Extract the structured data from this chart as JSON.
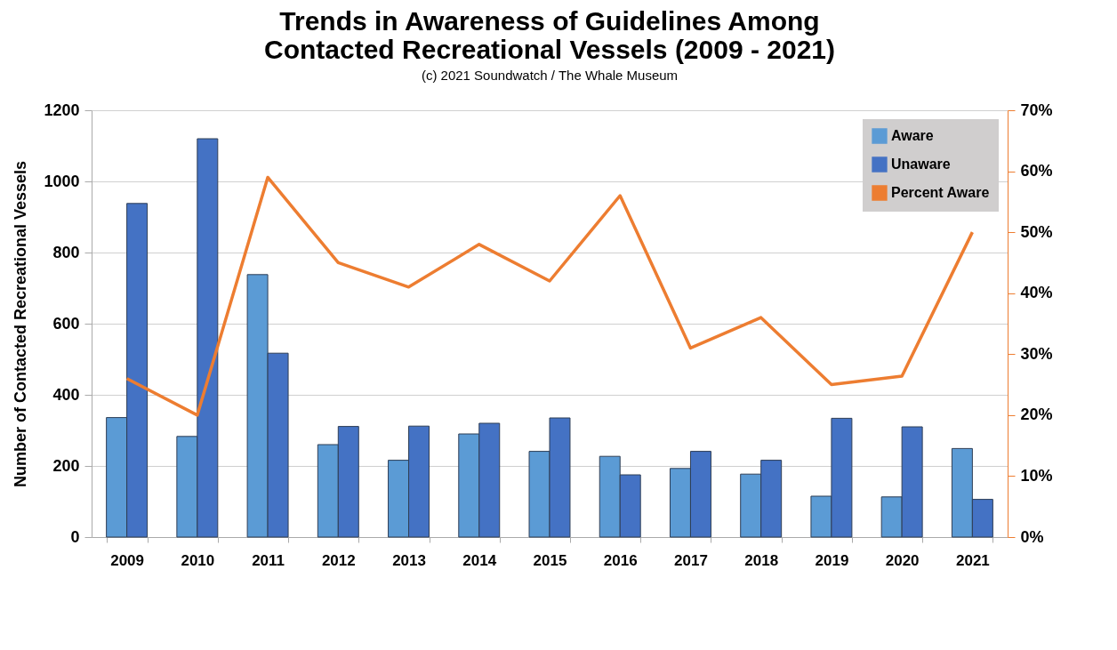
{
  "chart_data": {
    "type": "bar",
    "title": "Trends in Awareness of Guidelines Among Contacted Recreational Vessels (2009 - 2021)",
    "subtitle": "(c) 2021 Soundwatch / The Whale Museum",
    "ylabel": "Number of Contacted Recreational Vessels",
    "categories": [
      "2009",
      "2010",
      "2011",
      "2012",
      "2013",
      "2014",
      "2015",
      "2016",
      "2017",
      "2018",
      "2019",
      "2020",
      "2021"
    ],
    "series": [
      {
        "name": "Aware",
        "color": "#5b9bd5",
        "values": [
          336,
          283,
          738,
          260,
          216,
          290,
          241,
          227,
          193,
          177,
          115,
          113,
          249
        ]
      },
      {
        "name": "Unaware",
        "color": "#4472c4",
        "values": [
          938,
          1120,
          517,
          311,
          312,
          320,
          335,
          175,
          241,
          216,
          334,
          310,
          106
        ]
      },
      {
        "name": "Percent Aware",
        "type": "line",
        "axis": "y2",
        "color": "#ed7d31",
        "values": [
          26,
          20,
          59,
          45,
          41,
          48,
          42,
          56,
          31,
          36,
          25,
          26.4,
          50
        ]
      }
    ],
    "ylim": [
      0,
      1200
    ],
    "yticks": [
      0,
      200,
      400,
      600,
      800,
      1000,
      1200
    ],
    "y2lim": [
      0,
      70
    ],
    "y2ticks": [
      {
        "value": 0,
        "label": "0%"
      },
      {
        "value": 10,
        "label": "10%"
      },
      {
        "value": 20,
        "label": "20%"
      },
      {
        "value": 30,
        "label": "30%"
      },
      {
        "value": 40,
        "label": "40%"
      },
      {
        "value": 50,
        "label": "50%"
      },
      {
        "value": 60,
        "label": "60%"
      },
      {
        "value": 70,
        "label": "70%"
      }
    ],
    "grid": "y",
    "legend": "top right",
    "marker": "none",
    "line_style": "solid"
  }
}
